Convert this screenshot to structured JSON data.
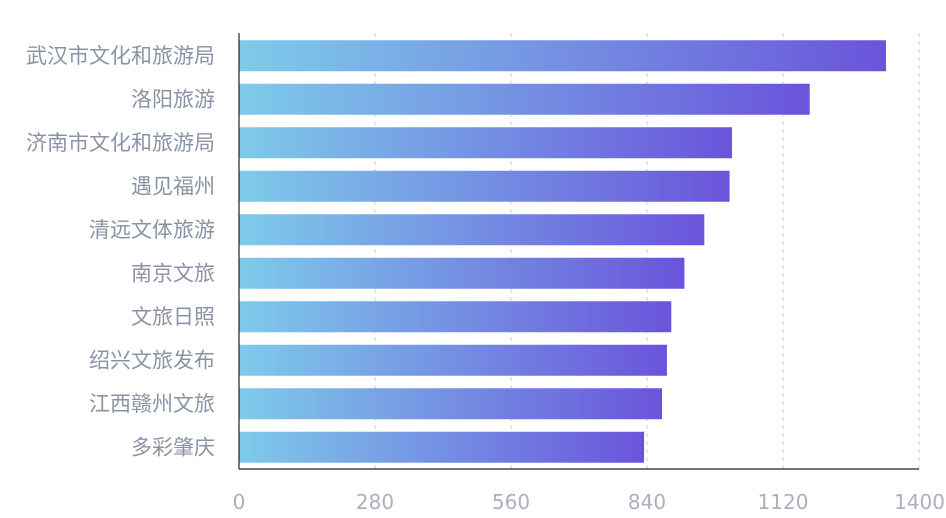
{
  "chart_data": {
    "type": "bar",
    "orientation": "horizontal",
    "title": "",
    "xlabel": "",
    "ylabel": "",
    "categories": [
      "武汉市文化和旅游局",
      "洛阳旅游",
      "济南市文化和旅游局",
      "遇见福州",
      "清远文体旅游",
      "南京文旅",
      "文旅日照",
      "绍兴文旅发布",
      "江西赣州文旅",
      "多彩肇庆"
    ],
    "values": [
      1332,
      1175,
      1015,
      1010,
      958,
      917,
      890,
      881,
      871,
      834
    ],
    "xlim": [
      0,
      1400
    ],
    "xticks": [
      0,
      280,
      560,
      840,
      1120,
      1400
    ],
    "grid": "vertical-dashed",
    "legend": "none",
    "colors": {
      "bar_start": "#7ecbea",
      "bar_end": "#6a54db",
      "grid": "#cfcfcf",
      "axis": "#222222",
      "category_text": "#8a93a6",
      "tick_text": "#aab0bd"
    }
  }
}
